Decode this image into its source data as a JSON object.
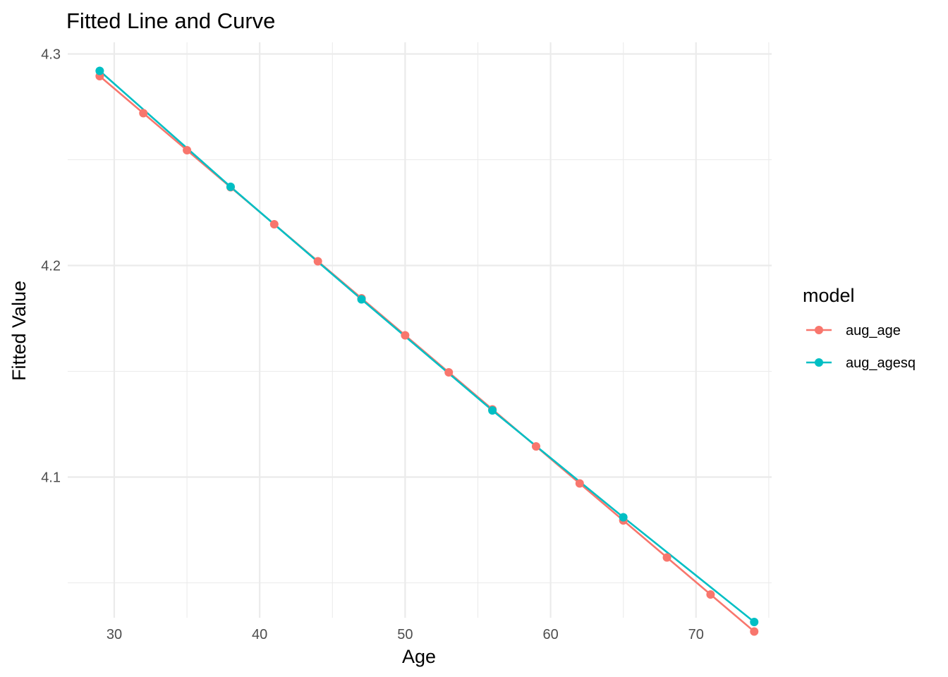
{
  "chart_data": {
    "type": "line",
    "title": "Fitted Line and Curve",
    "xlabel": "Age",
    "ylabel": "Fitted Value",
    "xlim": [
      26.8,
      75.2
    ],
    "ylim": [
      4.0335,
      4.3055
    ],
    "x_major_ticks": [
      30,
      40,
      50,
      60,
      70
    ],
    "x_minor_ticks": [
      35,
      45,
      55,
      65,
      75
    ],
    "y_major_ticks": [
      4.1,
      4.2,
      4.3
    ],
    "y_minor_ticks": [
      4.05,
      4.15,
      4.25
    ],
    "x_tick_labels": [
      "30",
      "40",
      "50",
      "60",
      "70"
    ],
    "y_tick_labels": [
      "4.1",
      "4.2",
      "4.3"
    ],
    "grid": true,
    "legend": {
      "title": "model",
      "placement": "right"
    },
    "series": [
      {
        "name": "aug_age",
        "color": "#F8766D",
        "x": [
          29,
          32,
          35,
          38,
          41,
          44,
          47,
          50,
          53,
          56,
          59,
          62,
          65,
          68,
          71,
          74
        ],
        "y": [
          4.2895,
          4.272,
          4.2545,
          4.237,
          4.2195,
          4.202,
          4.1845,
          4.167,
          4.1495,
          4.132,
          4.1145,
          4.097,
          4.0795,
          4.062,
          4.0445,
          4.027
        ]
      },
      {
        "name": "aug_agesq",
        "color": "#00BFC4",
        "x": [
          29,
          38,
          47,
          56,
          65,
          74
        ],
        "y": [
          4.292,
          4.2372,
          4.184,
          4.1315,
          4.081,
          4.0315
        ]
      }
    ]
  }
}
